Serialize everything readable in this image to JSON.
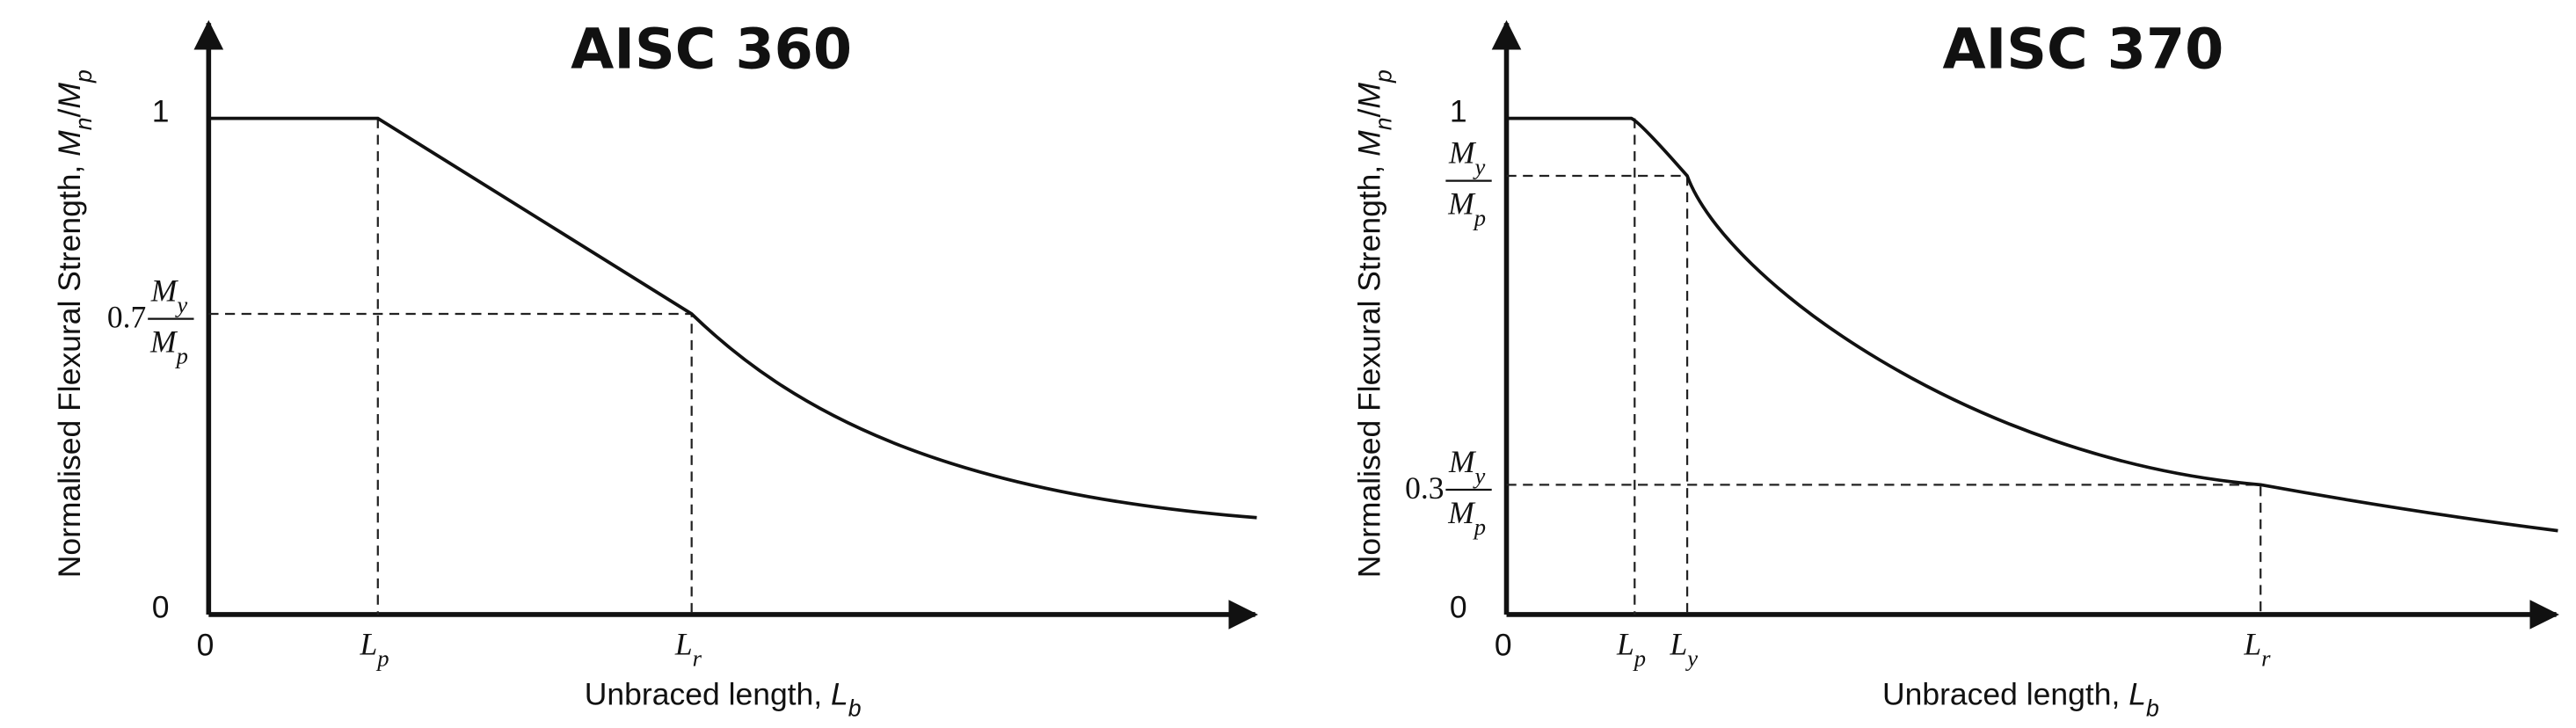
{
  "panels": [
    {
      "title": "AISC 360",
      "y_label": [
        {
          "text": "Normalised Flexural Strength, "
        },
        {
          "text": "M",
          "italic": true
        },
        {
          "text": "n",
          "italic": true,
          "sub": true
        },
        {
          "text": "/"
        },
        {
          "text": "M",
          "italic": true
        },
        {
          "text": "p",
          "italic": true,
          "sub": true
        }
      ],
      "x_label": [
        {
          "text": "Unbraced length, "
        },
        {
          "text": "L",
          "italic": true
        },
        {
          "text": "b",
          "italic": true,
          "sub": true
        }
      ],
      "y_ticks": [
        {
          "text": "1"
        },
        {
          "prefix": "0.7",
          "num": [
            {
              "text": "M",
              "italic": true
            },
            {
              "text": "y",
              "italic": true,
              "sub": true
            }
          ],
          "den": [
            {
              "text": "M",
              "italic": true
            },
            {
              "text": "p",
              "italic": true,
              "sub": true
            }
          ]
        },
        {
          "text": "0"
        }
      ],
      "x_ticks": [
        [
          {
            "text": "0"
          }
        ],
        [
          {
            "text": "L",
            "italic": true
          },
          {
            "text": "p",
            "italic": true,
            "sub": true
          }
        ],
        [
          {
            "text": "L",
            "italic": true
          },
          {
            "text": "r",
            "italic": true,
            "sub": true
          }
        ]
      ]
    },
    {
      "title": "AISC 370",
      "y_label": [
        {
          "text": "Normalised Flexural Strength, "
        },
        {
          "text": "M",
          "italic": true
        },
        {
          "text": "n",
          "italic": true,
          "sub": true
        },
        {
          "text": "/"
        },
        {
          "text": "M",
          "italic": true
        },
        {
          "text": "p",
          "italic": true,
          "sub": true
        }
      ],
      "x_label": [
        {
          "text": "Unbraced length, "
        },
        {
          "text": "L",
          "italic": true
        },
        {
          "text": "b",
          "italic": true,
          "sub": true
        }
      ],
      "y_ticks": [
        {
          "text": "1"
        },
        {
          "num": [
            {
              "text": "M",
              "italic": true
            },
            {
              "text": "y",
              "italic": true,
              "sub": true
            }
          ],
          "den": [
            {
              "text": "M",
              "italic": true
            },
            {
              "text": "p",
              "italic": true,
              "sub": true
            }
          ]
        },
        {
          "prefix": "0.3",
          "num": [
            {
              "text": "M",
              "italic": true
            },
            {
              "text": "y",
              "italic": true,
              "sub": true
            }
          ],
          "den": [
            {
              "text": "M",
              "italic": true
            },
            {
              "text": "p",
              "italic": true,
              "sub": true
            }
          ]
        },
        {
          "text": "0"
        }
      ],
      "x_ticks": [
        [
          {
            "text": "0"
          }
        ],
        [
          {
            "text": "L",
            "italic": true
          },
          {
            "text": "p",
            "italic": true,
            "sub": true
          }
        ],
        [
          {
            "text": "L",
            "italic": true
          },
          {
            "text": "y",
            "italic": true,
            "sub": true
          }
        ],
        [
          {
            "text": "L",
            "italic": true
          },
          {
            "text": "r",
            "italic": true,
            "sub": true
          }
        ]
      ]
    }
  ]
}
